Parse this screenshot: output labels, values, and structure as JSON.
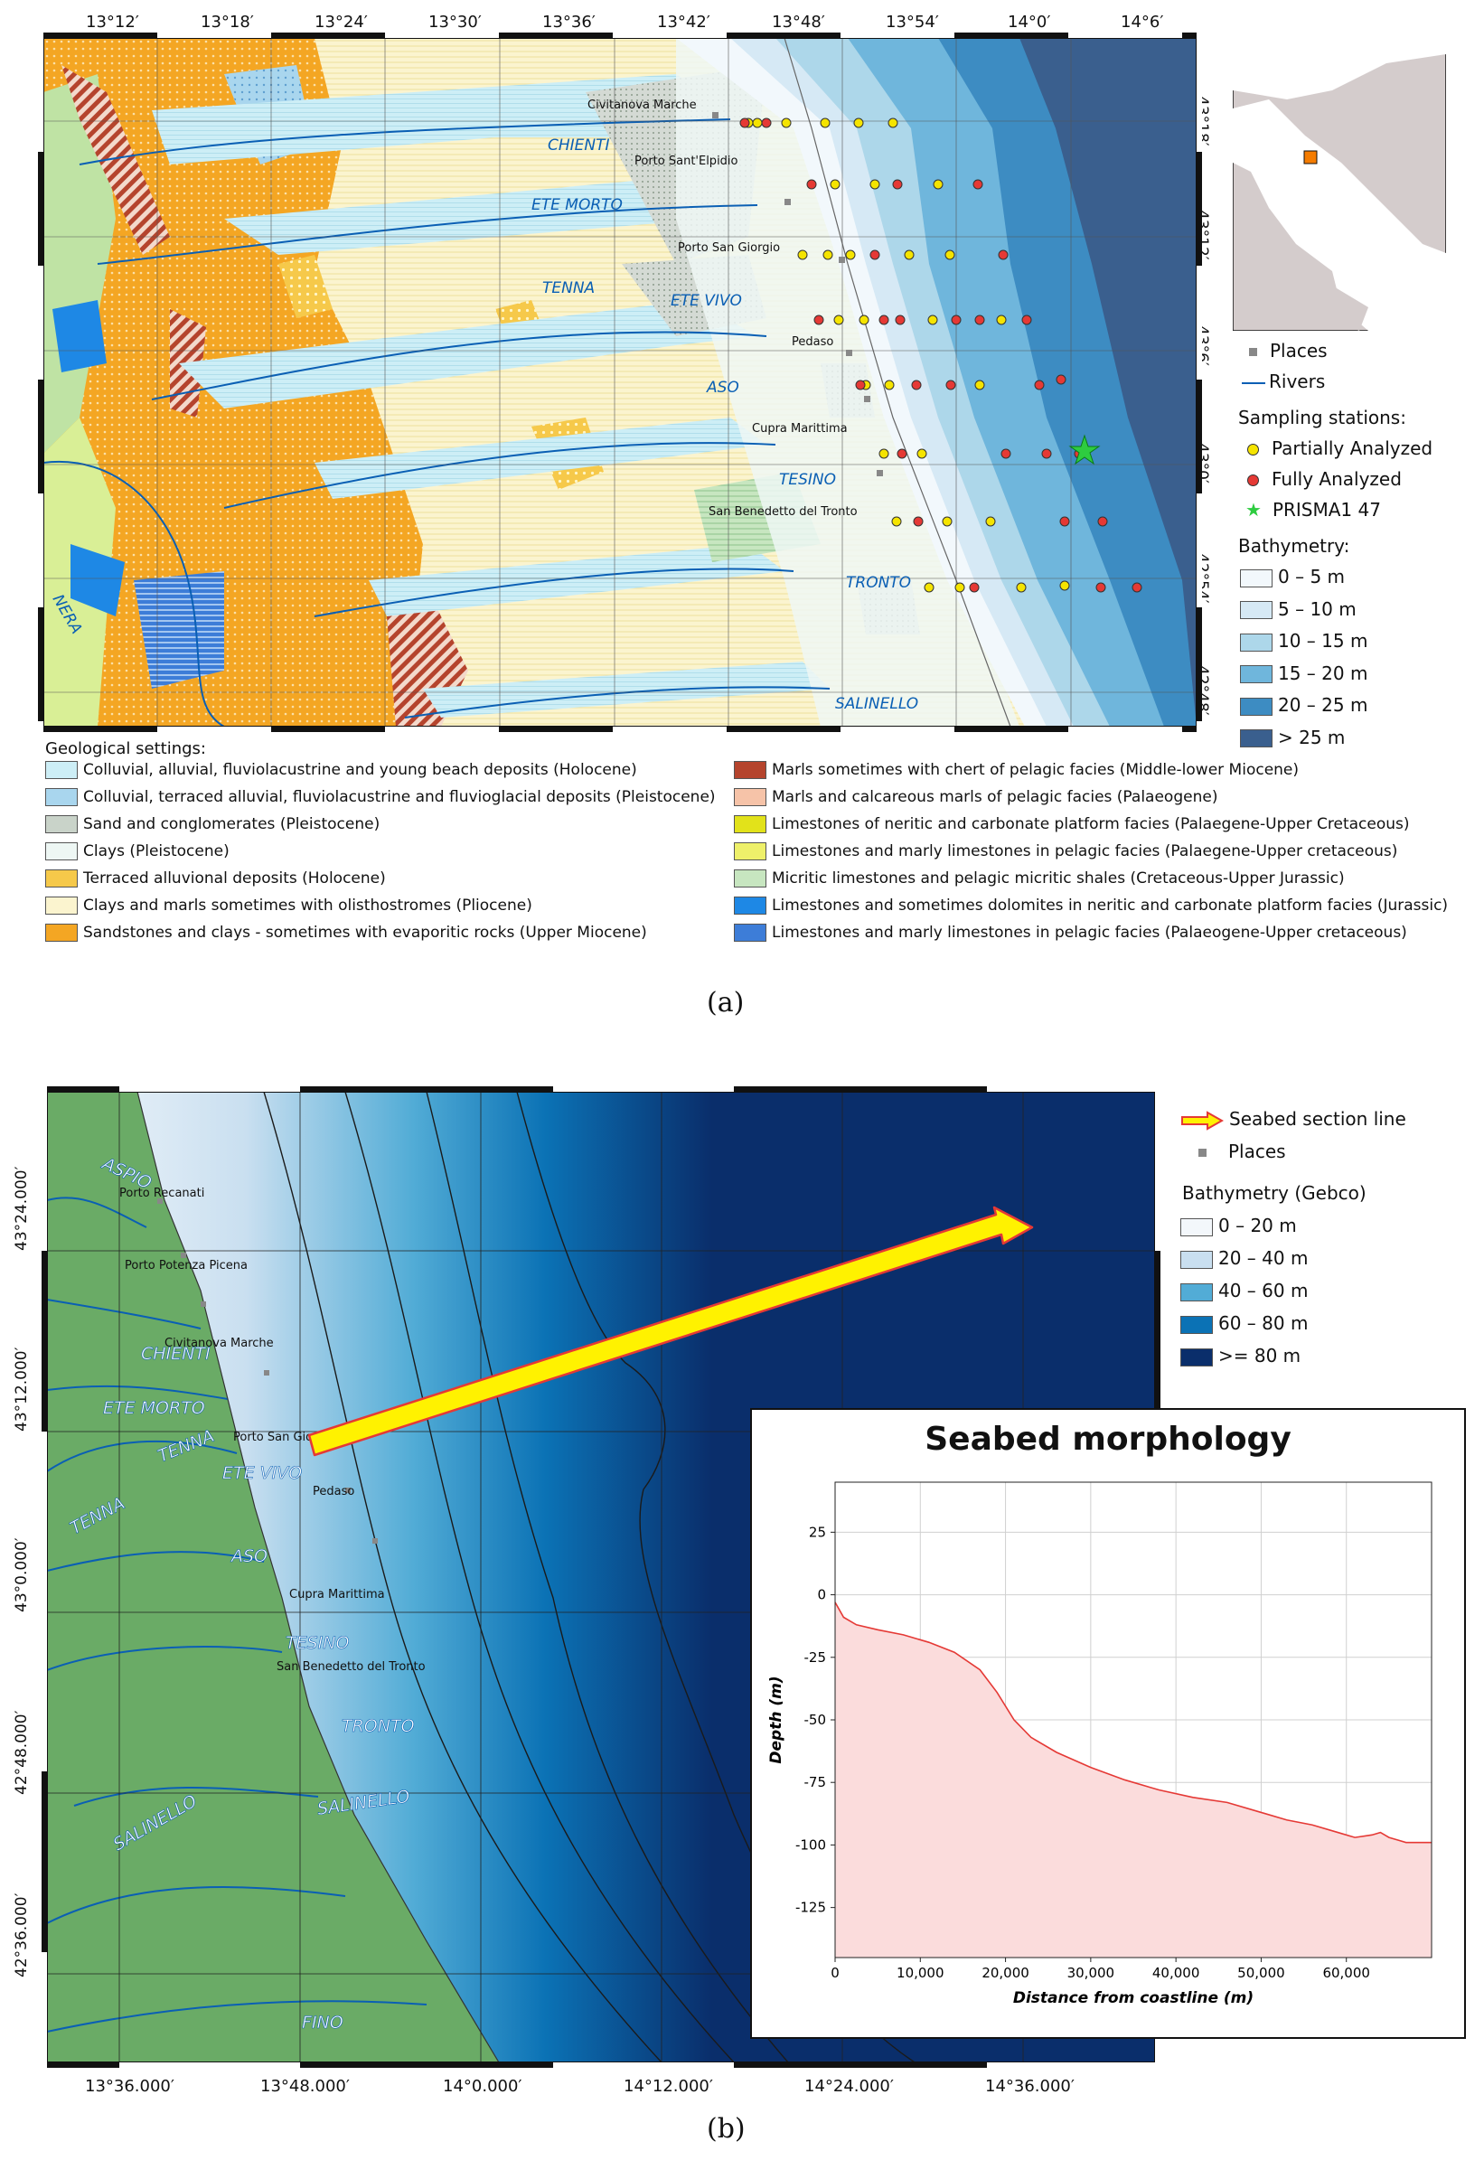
{
  "panel_a": {
    "lon_ticks": [
      "13°12′",
      "13°18′",
      "13°24′",
      "13°30′",
      "13°36′",
      "13°42′",
      "13°48′",
      "13°54′",
      "14°0′",
      "14°6′"
    ],
    "lat_ticks": [
      "43°18′",
      "43°12′",
      "43°6′",
      "43°0′",
      "42°54′",
      "42°48′"
    ],
    "rivers": [
      "CHIENTI",
      "ETE MORTO",
      "TENNA",
      "ETE VIVO",
      "ASO",
      "TESINO",
      "TRONTO",
      "SALINELLO",
      "NERA"
    ],
    "places": [
      "Civitanova Marche",
      "Porto Sant'Elpidio",
      "Porto San Giorgio",
      "Pedaso",
      "Cupra Marittima",
      "San Benedetto del Tronto"
    ],
    "legend": {
      "places": "Places",
      "rivers": "Rivers",
      "sampling_title": "Sampling stations:",
      "partially": "Partially Analyzed",
      "fully": "Fully Analyzed",
      "prisma": "PRISMA1 47",
      "bathy_title": "Bathymetry:",
      "bathy": [
        {
          "label": "0 – 5 m",
          "color": "#f2f8fc"
        },
        {
          "label": "5 – 10 m",
          "color": "#d6e9f5"
        },
        {
          "label": "10 – 15 m",
          "color": "#add7ea"
        },
        {
          "label": "15 – 20 m",
          "color": "#6fb6dc"
        },
        {
          "label": "20 – 25 m",
          "color": "#3d8cc2"
        },
        {
          "label": "> 25 m",
          "color": "#3a5f8e"
        }
      ]
    },
    "geo_title": "Geological settings:",
    "geo_left": [
      {
        "label": "Colluvial, alluvial, fluviolacustrine and young beach deposits (Holocene)",
        "color": "#cdeef6"
      },
      {
        "label": "Colluvial, terraced alluvial, fluviolacustrine and fluvioglacial deposits (Pleistocene)",
        "color": "#a9d6ee"
      },
      {
        "label": "Sand and conglomerates (Pleistocene)",
        "color": "#c9d3c9"
      },
      {
        "label": "Clays (Pleistocene)",
        "color": "#eef7f4"
      },
      {
        "label": "Terraced alluvional deposits (Holocene)",
        "color": "#f6c94a"
      },
      {
        "label": "Clays and marls sometimes with olisthostromes (Pliocene)",
        "color": "#fbf4cf"
      },
      {
        "label": "Sandstones and clays - sometimes with evaporitic rocks (Upper Miocene)",
        "color": "#f4a623"
      }
    ],
    "geo_right": [
      {
        "label": "Marls sometimes with chert of pelagic facies (Middle-lower Miocene)",
        "color": "#b5442d"
      },
      {
        "label": "Marls and calcareous marls of pelagic facies (Palaeogene)",
        "color": "#f6c3a8"
      },
      {
        "label": "Limestones of neritic and carbonate platform facies (Palaegene-Upper Cretaceous)",
        "color": "#e2e21a"
      },
      {
        "label": "Limestones and marly limestones in pelagic facies (Palaegene-Upper cretaceous)",
        "color": "#eef06a"
      },
      {
        "label": "Micritic limestones and pelagic micritic shales (Cretaceous-Upper Jurassic)",
        "color": "#c7e6c0"
      },
      {
        "label": "Limestones and sometimes dolomites in neritic and carbonate platform facies (Jurassic)",
        "color": "#1e88e5"
      },
      {
        "label": "Limestones and marly limestones in pelagic facies (Palaeogene-Upper cretaceous)",
        "color": "#3d7dd8"
      }
    ],
    "caption": "(a)"
  },
  "panel_b": {
    "lon_ticks": [
      "13°36.000′",
      "13°48.000′",
      "14°0.000′",
      "14°12.000′",
      "14°24.000′",
      "14°36.000′"
    ],
    "lat_ticks": [
      "43°24.000′",
      "43°12.000′",
      "43°0.000′",
      "42°48.000′",
      "42°36.000′"
    ],
    "rivers": [
      "ASPIO",
      "CHIENTI",
      "ETE MORTO",
      "TENNA",
      "TENNA",
      "ETE VIVO",
      "ASO",
      "TESINO",
      "TRONTO",
      "SALINELLO",
      "SALINELLO",
      "FINO"
    ],
    "places": [
      "Porto Recanati",
      "Porto Potenza Picena",
      "Civitanova Marche",
      "Porto San Giorgio",
      "Pedaso",
      "Cupra Marittima",
      "San Benedetto del Tronto"
    ],
    "legend": {
      "section": "Seabed section line",
      "places": "Places",
      "bathy_title": "Bathymetry (Gebco)",
      "bathy": [
        {
          "label": "0 – 20 m",
          "color": "#f3f7fb"
        },
        {
          "label": "20 – 40 m",
          "color": "#c9dff0"
        },
        {
          "label": "40 – 60 m",
          "color": "#52acd6"
        },
        {
          "label": "60 – 80 m",
          "color": "#0b72b5"
        },
        {
          "label": ">= 80 m",
          "color": "#0a2e6b"
        }
      ]
    },
    "caption": "(b)"
  },
  "chart_data": {
    "type": "area",
    "title": "Seabed morphology",
    "xlabel": "Distance from coastline (m)",
    "ylabel": "Depth (m)",
    "xlim": [
      0,
      70000
    ],
    "ylim": [
      -145,
      45
    ],
    "xticks": [
      0,
      10000,
      20000,
      30000,
      40000,
      50000,
      60000
    ],
    "xtick_labels": [
      "0",
      "10,000",
      "20,000",
      "30,000",
      "40,000",
      "50,000",
      "60,000"
    ],
    "yticks": [
      25,
      0,
      -25,
      -50,
      -75,
      -100,
      -125
    ],
    "grid": true,
    "line_color": "#e53935",
    "fill_color": "#fbdcdc",
    "x": [
      0,
      1000,
      2500,
      5000,
      8000,
      11000,
      14000,
      17000,
      19000,
      21000,
      23000,
      26000,
      30000,
      34000,
      38000,
      42000,
      46000,
      50000,
      53000,
      56000,
      59000,
      61000,
      63000,
      64000,
      65000,
      66000,
      67000,
      70000
    ],
    "y": [
      -3,
      -9,
      -12,
      -14,
      -16,
      -19,
      -23,
      -30,
      -39,
      -50,
      -57,
      -63,
      -69,
      -74,
      -78,
      -81,
      -83,
      -87,
      -90,
      -92,
      -95,
      -97,
      -96,
      -95,
      -97,
      -98,
      -99,
      -99
    ]
  }
}
